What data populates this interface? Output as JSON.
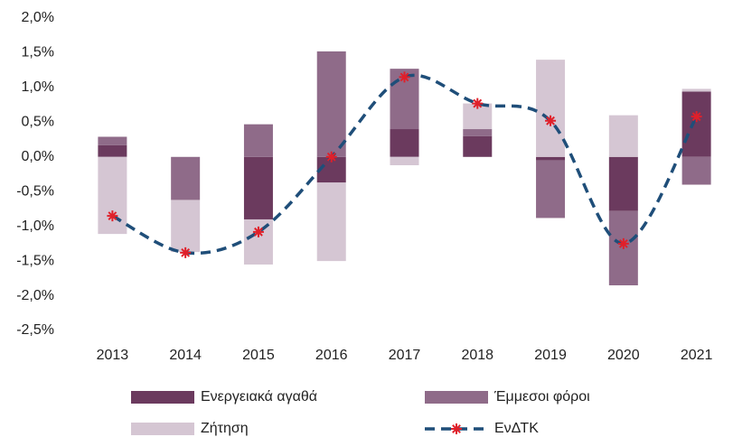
{
  "chart_data": {
    "type": "stacked-bar-line",
    "categories": [
      "2013",
      "2014",
      "2015",
      "2016",
      "2017",
      "2018",
      "2019",
      "2020",
      "2021"
    ],
    "series": [
      {
        "name": "Ενεργειακά αγαθά",
        "color": "#6b3a5e",
        "values": [
          0.17,
          0.0,
          -0.9,
          -0.37,
          0.4,
          0.3,
          -0.05,
          -0.78,
          0.94
        ]
      },
      {
        "name": "Έμμεσοι φόροι",
        "color": "#8f6b89",
        "values": [
          0.12,
          -0.62,
          0.47,
          1.52,
          0.87,
          0.1,
          -0.83,
          -1.07,
          -0.4
        ]
      },
      {
        "name": "Ζήτηση",
        "color": "#d5c6d3",
        "values": [
          -1.11,
          -0.75,
          -0.65,
          -1.13,
          -0.12,
          0.37,
          1.4,
          0.6,
          0.04
        ]
      },
      {
        "name": "ΕνΔΤΚ",
        "color": "#1f4e79",
        "marker_color": "#e0202a",
        "type": "line",
        "values": [
          -0.85,
          -1.38,
          -1.08,
          0.0,
          1.15,
          0.77,
          0.52,
          -1.25,
          0.58
        ]
      }
    ],
    "ylim": [
      -2.5,
      2.0
    ],
    "yticks": [
      {
        "value": -2.5,
        "label": "-2,5%"
      },
      {
        "value": -2.0,
        "label": "-2,0%"
      },
      {
        "value": -1.5,
        "label": "-1,5%"
      },
      {
        "value": -1.0,
        "label": "-1,0%"
      },
      {
        "value": -0.5,
        "label": "-0,5%"
      },
      {
        "value": 0.0,
        "label": "0,0%"
      },
      {
        "value": 0.5,
        "label": "0,5%"
      },
      {
        "value": 1.0,
        "label": "1,0%"
      },
      {
        "value": 1.5,
        "label": "1,5%"
      },
      {
        "value": 2.0,
        "label": "2,0%"
      }
    ],
    "grid": false,
    "legend": "bottom"
  }
}
